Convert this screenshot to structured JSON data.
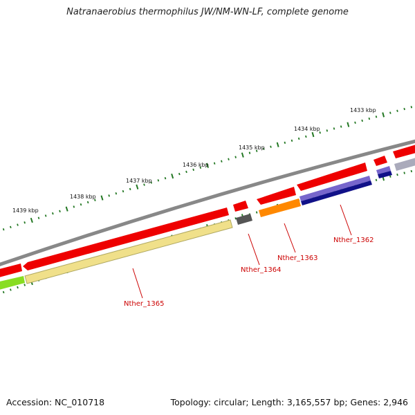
{
  "title": "Natranaerobius thermophilus JW/NM-WN-LF, complete genome",
  "footer": {
    "accession": "Accession: NC_010718",
    "summary": "Topology: circular; Length: 3,165,557 bp; Genes: 2,946"
  },
  "scale_labels": [
    "1433 kbp",
    "1434 kbp",
    "1435 kbp",
    "1436 kbp",
    "1437 kbp",
    "1438 kbp",
    "1439 kbp"
  ],
  "gene_labels": [
    "Nther_1362",
    "Nther_1363",
    "Nther_1364",
    "Nther_1365"
  ],
  "colors": {
    "backbone": "#888888",
    "cds_forward": "#ee0000",
    "tick": "#227722",
    "label": "#cc0000",
    "cog_yellow": "#f0e08a",
    "cog_green": "#88dd22",
    "cog_orange": "#ff8800",
    "cog_purple": "#7766cc",
    "cog_navy": "#111188",
    "cog_gray": "#555555",
    "cog_lightgray": "#aaaabb"
  }
}
